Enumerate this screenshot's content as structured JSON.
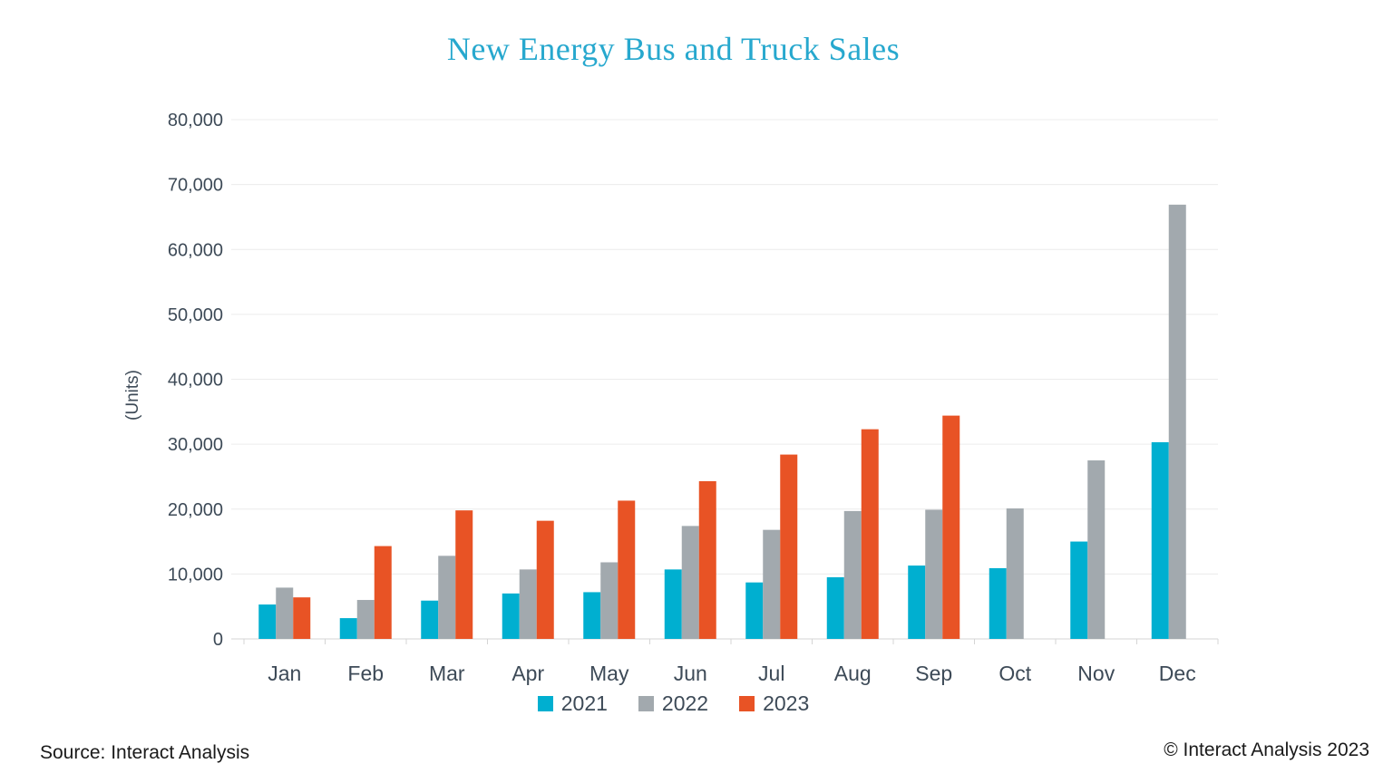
{
  "chart_data": {
    "type": "bar",
    "title": "New Energy Bus and Truck Sales",
    "ylabel": "(Units)",
    "xlabel": "",
    "categories": [
      "Jan",
      "Feb",
      "Mar",
      "Apr",
      "May",
      "Jun",
      "Jul",
      "Aug",
      "Sep",
      "Oct",
      "Nov",
      "Dec"
    ],
    "series": [
      {
        "name": "2021",
        "color": "#00AFD0",
        "values": [
          5300,
          3200,
          5900,
          7000,
          7200,
          10700,
          8700,
          9500,
          11300,
          10900,
          15000,
          30300
        ]
      },
      {
        "name": "2022",
        "color": "#A2A9AE",
        "values": [
          7900,
          6000,
          12800,
          10700,
          11800,
          17400,
          16800,
          19700,
          19900,
          20100,
          27500,
          66900
        ]
      },
      {
        "name": "2023",
        "color": "#E85325",
        "values": [
          6400,
          14300,
          19800,
          18200,
          21300,
          24300,
          28400,
          32300,
          34400,
          null,
          null,
          null
        ]
      }
    ],
    "ylim": [
      0,
      80000
    ],
    "ytick_step": 10000,
    "ytick_labels": [
      "0",
      "10,000",
      "20,000",
      "30,000",
      "40,000",
      "50,000",
      "60,000",
      "70,000",
      "80,000"
    ],
    "grid": true,
    "legend_position": "bottom"
  },
  "footer": {
    "source_left": "Source: Interact Analysis",
    "copyright_right": "© Interact Analysis 2023"
  },
  "colors": {
    "title": "#27A8CE",
    "axis_text": "#3D4A57",
    "gridline": "#ECECEC",
    "axis_line": "#D5D5D5",
    "background": "#FFFFFF"
  }
}
